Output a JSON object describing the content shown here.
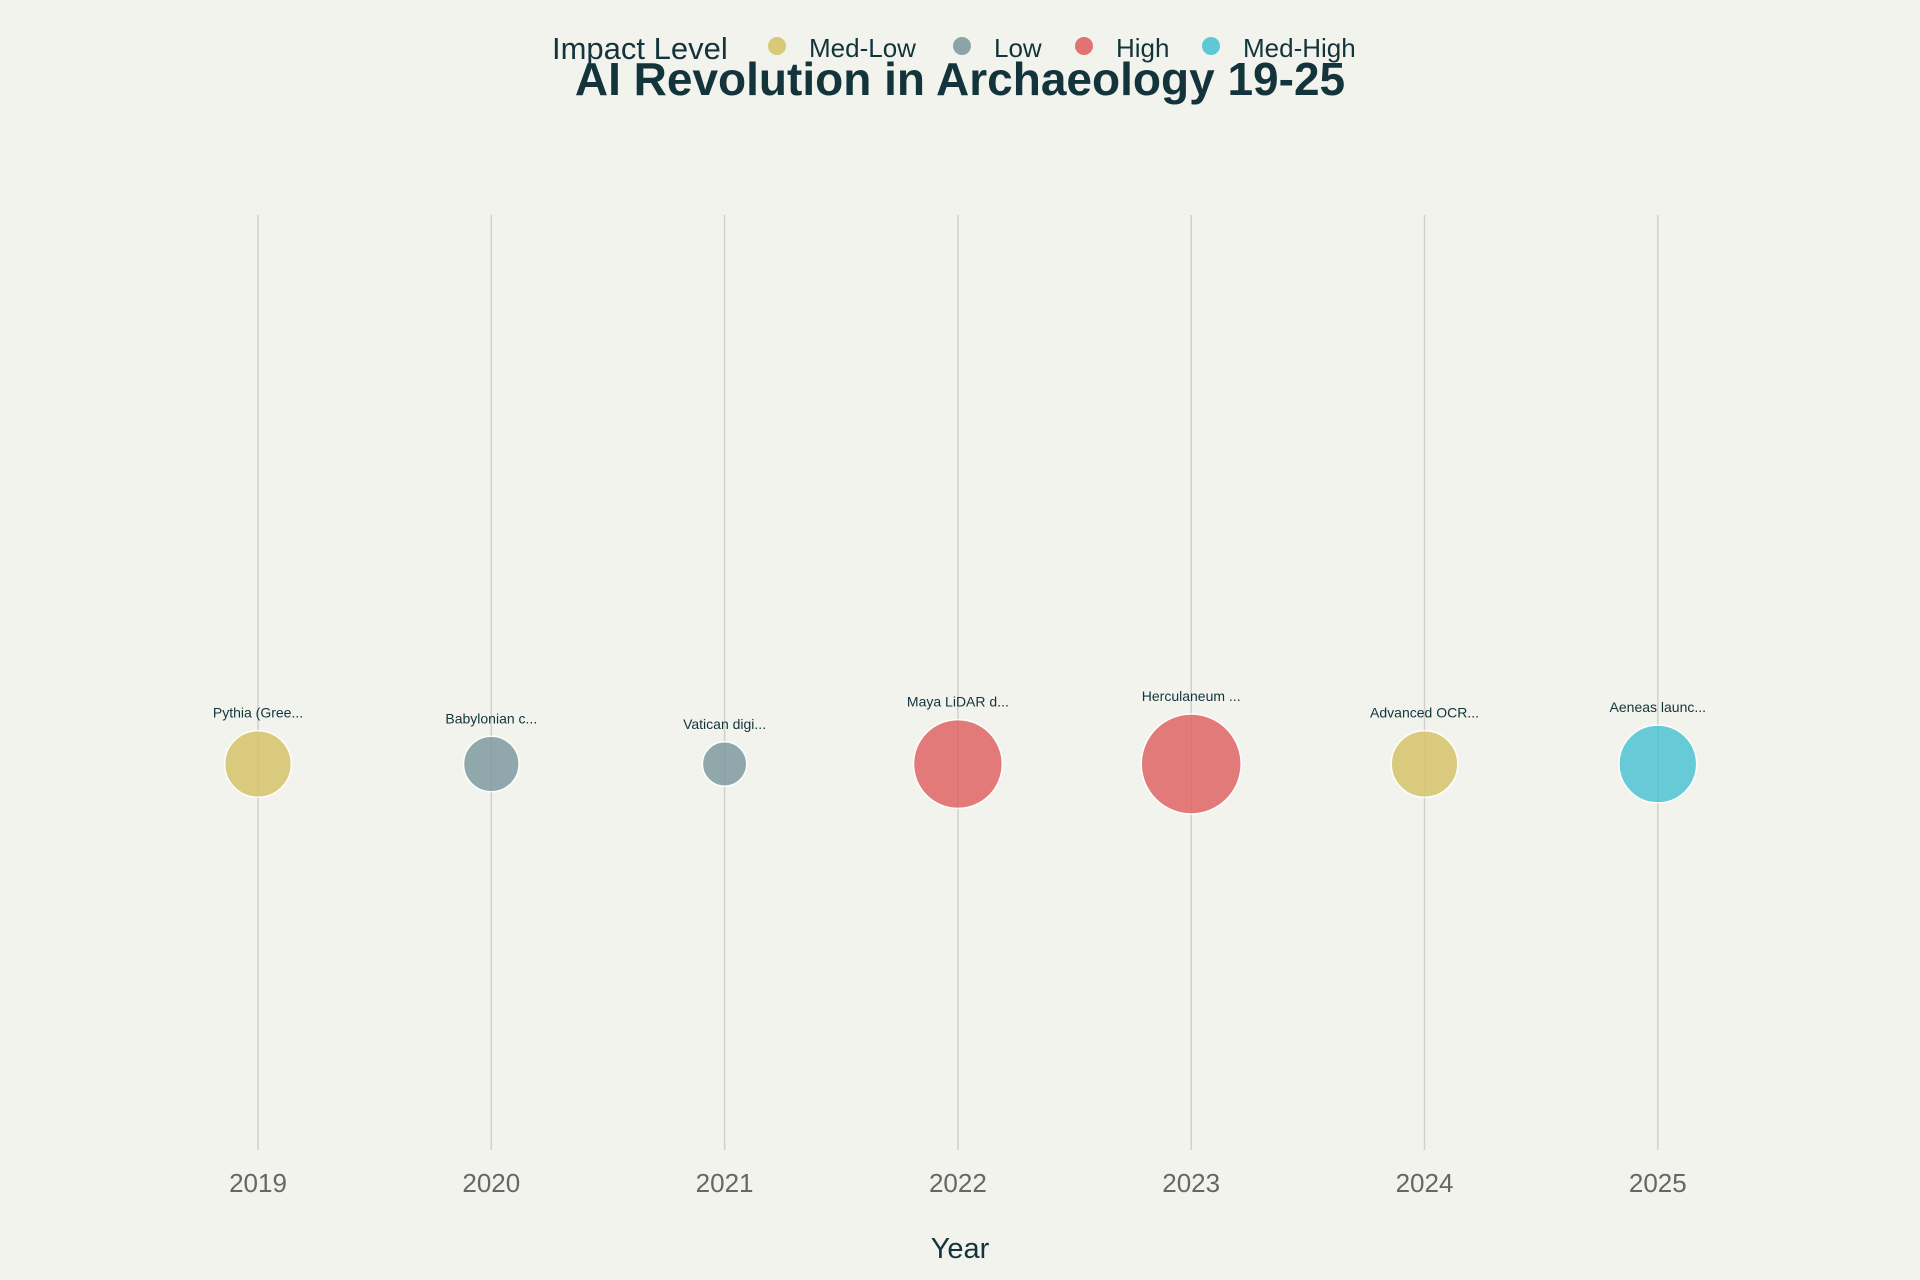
{
  "chart_data": {
    "type": "scatter",
    "title": "AI Revolution in Archaeology 19-25",
    "xlabel": "Year",
    "ylabel": "",
    "x_ticks": [
      "2019",
      "2020",
      "2021",
      "2022",
      "2023",
      "2024",
      "2025"
    ],
    "legend": {
      "title": "Impact Level",
      "placement": "top",
      "entries": [
        {
          "name": "Med-Low",
          "color": "#d5c46a"
        },
        {
          "name": "Low",
          "color": "#7f9ba0"
        },
        {
          "name": "High",
          "color": "#e06566"
        },
        {
          "name": "Med-High",
          "color": "#4ec3d4"
        }
      ]
    },
    "points": [
      {
        "x": 2019,
        "label": "Pythia (Gree...",
        "impact": "Med-Low",
        "size": 6
      },
      {
        "x": 2020,
        "label": "Babylonian c...",
        "impact": "Low",
        "size": 5
      },
      {
        "x": 2021,
        "label": "Vatican digi...",
        "impact": "Low",
        "size": 4
      },
      {
        "x": 2022,
        "label": "Maya LiDAR d...",
        "impact": "High",
        "size": 8
      },
      {
        "x": 2023,
        "label": "Herculaneum ...",
        "impact": "High",
        "size": 9
      },
      {
        "x": 2024,
        "label": "Advanced OCR...",
        "impact": "Med-Low",
        "size": 6
      },
      {
        "x": 2025,
        "label": "Aeneas launc...",
        "impact": "Med-High",
        "size": 7
      }
    ],
    "xlim": [
      2018.0,
      2026.0
    ],
    "grid": {
      "vertical": true,
      "horizontal": false
    }
  }
}
